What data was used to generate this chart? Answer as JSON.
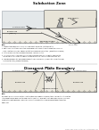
{
  "top_title": "Subduction Zone",
  "bottom_title": "Divergent Plate Boundary",
  "bg_color": "#ffffff",
  "plate_fill": "#e8e4d8",
  "plate_edge": "#555555",
  "text_color": "#111111",
  "gray_text": "#666666",
  "arrow_color": "#333333",
  "line_color": "#444444",
  "light_fill": "#f0ede5",
  "ocean_fill": "#dde5ee",
  "subduction_top_notes": [
    "Note:",
    "1. Subducting plates carry ocean floor sediments and water into the mantle.",
    "2. Melting occurs at the base of the descending plate. Then it rises through the overlying",
    "   plate creating volcanoes. Seismic activity accompanies subduction. (Wadati-Benioff Zone)",
    "3. At top of Pacific Plate is a subduction zone - forming on the",
    "4. (ex) Pacific Plate = the Juan de Fuca, the Cocos and Juan de Fuca Plates. Nazca Plate",
    "   also subducting. Subducting Plates the Mariana Trench - Mt. Fuji, the Himalayan, etc.",
    "5. The descending plate also shows subducted zone volcanoes (Ocean Plate subducts under",
    "   continental plate) (Subductive Zone)"
  ],
  "bottom_notes": [
    "Note:",
    "Divergent zones occur where two crustal plates move away from each other in subduction to creating",
    "intermediate zones where plates new crust is created. A Divergent Plate Boundary is also known as a",
    "Constructive Plate Boundary because new crust is constantly being formed between the plates.",
    "New Crust"
  ],
  "footer": "Science Copy of Subduction / Div. Plate Bound. 2.22"
}
